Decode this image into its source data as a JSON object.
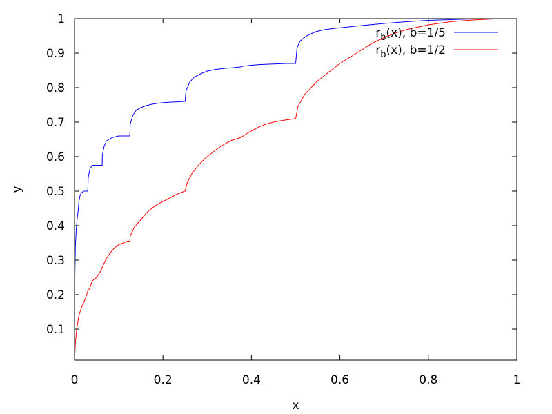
{
  "chart_data": {
    "type": "line",
    "title": "",
    "xlabel": "x",
    "ylabel": "y",
    "xlim": [
      0,
      1
    ],
    "ylim": [
      0.01,
      1
    ],
    "x_ticks": [
      0,
      0.2,
      0.4,
      0.6,
      0.8,
      1
    ],
    "x_tick_labels": [
      "0",
      "0.2",
      "0.4",
      "0.6",
      "0.8",
      "1"
    ],
    "y_ticks": [
      0.1,
      0.2,
      0.3,
      0.4,
      0.5,
      0.6,
      0.7,
      0.8,
      0.9,
      1
    ],
    "y_tick_labels": [
      "0.1",
      "0.2",
      "0.3",
      "0.4",
      "0.5",
      "0.6",
      "0.7",
      "0.8",
      "0.9",
      "1"
    ],
    "grid": false,
    "legend_position": "top-right",
    "series": [
      {
        "name": "r_b(x), b=1/5",
        "legend_prefix": "r",
        "legend_subscript": "b",
        "legend_suffix": "(x), b=1/5",
        "color": "#0000ff",
        "x": [
          0,
          0.001,
          0.002,
          0.004,
          0.006,
          0.008,
          0.01,
          0.013,
          0.016,
          0.02,
          0.025,
          0.03,
          0.031,
          0.035,
          0.04,
          0.045,
          0.05,
          0.055,
          0.06,
          0.0625,
          0.063,
          0.067,
          0.072,
          0.078,
          0.085,
          0.093,
          0.1,
          0.11,
          0.12,
          0.125,
          0.126,
          0.132,
          0.14,
          0.15,
          0.162,
          0.175,
          0.19,
          0.205,
          0.22,
          0.235,
          0.249,
          0.25,
          0.252,
          0.26,
          0.27,
          0.285,
          0.3,
          0.32,
          0.34,
          0.36,
          0.375,
          0.38,
          0.4,
          0.42,
          0.44,
          0.46,
          0.48,
          0.499,
          0.5,
          0.503,
          0.51,
          0.525,
          0.545,
          0.565,
          0.59,
          0.62,
          0.65,
          0.7,
          0.75,
          0.8,
          0.85,
          0.9,
          0.95,
          1.0
        ],
        "y": [
          0.16,
          0.27,
          0.34,
          0.39,
          0.42,
          0.44,
          0.47,
          0.49,
          0.495,
          0.5,
          0.5,
          0.5,
          0.54,
          0.565,
          0.575,
          0.575,
          0.575,
          0.575,
          0.575,
          0.575,
          0.605,
          0.63,
          0.645,
          0.65,
          0.655,
          0.658,
          0.66,
          0.66,
          0.66,
          0.66,
          0.695,
          0.72,
          0.735,
          0.742,
          0.748,
          0.752,
          0.755,
          0.757,
          0.758,
          0.759,
          0.76,
          0.76,
          0.79,
          0.815,
          0.83,
          0.84,
          0.848,
          0.853,
          0.856,
          0.858,
          0.86,
          0.862,
          0.865,
          0.867,
          0.868,
          0.869,
          0.87,
          0.87,
          0.87,
          0.915,
          0.935,
          0.95,
          0.962,
          0.968,
          0.972,
          0.976,
          0.98,
          0.986,
          0.991,
          0.995,
          0.997,
          0.999,
          1.0,
          1.0
        ]
      },
      {
        "name": "r_b(x), b=1/2",
        "legend_prefix": "r",
        "legend_subscript": "b",
        "legend_suffix": "(x), b=1/2",
        "color": "#ff0000",
        "x": [
          0,
          0.002,
          0.005,
          0.01,
          0.015,
          0.02,
          0.025,
          0.03,
          0.035,
          0.04,
          0.05,
          0.06,
          0.063,
          0.07,
          0.08,
          0.09,
          0.1,
          0.11,
          0.12,
          0.125,
          0.126,
          0.135,
          0.145,
          0.155,
          0.165,
          0.175,
          0.185,
          0.2,
          0.215,
          0.23,
          0.249,
          0.25,
          0.255,
          0.265,
          0.28,
          0.295,
          0.31,
          0.325,
          0.34,
          0.355,
          0.375,
          0.39,
          0.405,
          0.42,
          0.435,
          0.45,
          0.47,
          0.499,
          0.5,
          0.505,
          0.52,
          0.535,
          0.55,
          0.565,
          0.58,
          0.6,
          0.625,
          0.65,
          0.675,
          0.7,
          0.725,
          0.75,
          0.8,
          0.85,
          0.9,
          0.95,
          1.0
        ],
        "y": [
          0.01,
          0.06,
          0.1,
          0.14,
          0.16,
          0.175,
          0.19,
          0.21,
          0.22,
          0.24,
          0.25,
          0.27,
          0.28,
          0.3,
          0.32,
          0.335,
          0.345,
          0.35,
          0.355,
          0.355,
          0.37,
          0.395,
          0.41,
          0.425,
          0.44,
          0.45,
          0.46,
          0.47,
          0.48,
          0.49,
          0.5,
          0.5,
          0.525,
          0.55,
          0.575,
          0.595,
          0.61,
          0.625,
          0.637,
          0.647,
          0.655,
          0.667,
          0.678,
          0.688,
          0.695,
          0.7,
          0.705,
          0.71,
          0.71,
          0.745,
          0.78,
          0.8,
          0.82,
          0.835,
          0.85,
          0.87,
          0.89,
          0.91,
          0.93,
          0.945,
          0.958,
          0.968,
          0.982,
          0.991,
          0.996,
          0.999,
          1.0
        ]
      }
    ]
  }
}
